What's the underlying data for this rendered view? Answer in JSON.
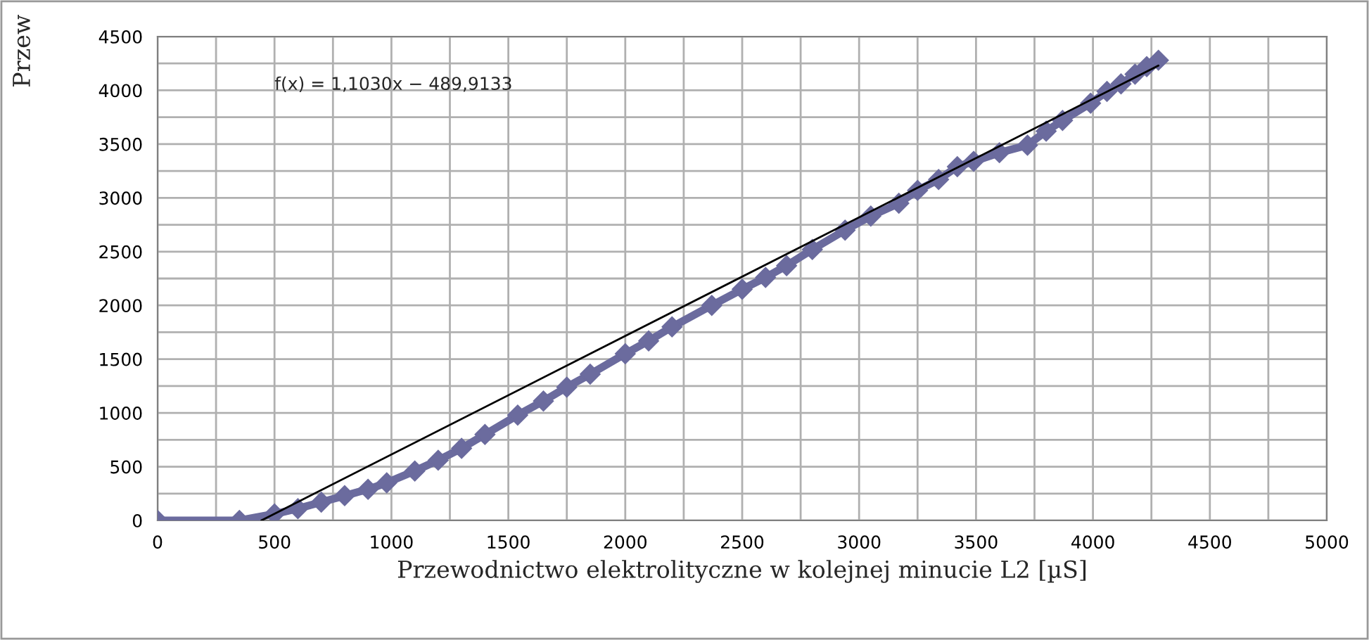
{
  "chart_data": {
    "type": "line",
    "xlabel": "Przewodnictwo elektrolityczne w kolejnej minucie L2 [µS]",
    "ylabel": "Przew",
    "annotations": [
      "f(x) = 1,1030x − 489,9133"
    ],
    "series": [
      {
        "color": "#6b6b9e",
        "marker": "diamond",
        "x": [
          0,
          350,
          500,
          600,
          700,
          800,
          900,
          980,
          1100,
          1200,
          1300,
          1400,
          1540,
          1650,
          1750,
          1850,
          2000,
          2100,
          2200,
          2370,
          2500,
          2600,
          2690,
          2800,
          2940,
          3050,
          3170,
          3250,
          3340,
          3420,
          3490,
          3600,
          3720,
          3800,
          3870,
          3990,
          4060,
          4120,
          4180,
          4230,
          4280
        ],
        "values": [
          0,
          0,
          60,
          110,
          170,
          230,
          290,
          350,
          460,
          560,
          670,
          800,
          980,
          1110,
          1240,
          1360,
          1550,
          1670,
          1800,
          2000,
          2150,
          2260,
          2370,
          2520,
          2700,
          2830,
          2950,
          3070,
          3170,
          3290,
          3340,
          3420,
          3490,
          3620,
          3720,
          3880,
          3990,
          4060,
          4150,
          4220,
          4280
        ]
      },
      {
        "color": "#000000",
        "marker": "none",
        "x": [
          444,
          4280
        ],
        "values": [
          0,
          4230
        ]
      }
    ],
    "xlim": [
      0,
      5000
    ],
    "ylim": [
      0,
      4500
    ],
    "xticks": [
      0,
      {
        "value": 250,
        "label": null
      },
      500,
      {
        "value": 750,
        "label": null
      },
      1000,
      {
        "value": 1250,
        "label": null
      },
      1500,
      {
        "value": 1750,
        "label": null
      },
      2000,
      {
        "value": 2250,
        "label": null
      },
      2500,
      {
        "value": 2750,
        "label": null
      },
      3000,
      {
        "value": 3250,
        "label": null
      },
      3500,
      {
        "value": 3750,
        "label": null
      },
      4000,
      {
        "value": 4250,
        "label": null
      },
      4500,
      {
        "value": 4750,
        "label": null
      },
      5000
    ],
    "yticks": [
      0,
      {
        "value": 250,
        "label": null
      },
      500,
      {
        "value": 750,
        "label": null
      },
      1000,
      {
        "value": 1250,
        "label": null
      },
      1500,
      {
        "value": 1750,
        "label": null
      },
      2000,
      {
        "value": 2250,
        "label": null
      },
      2500,
      {
        "value": 2750,
        "label": null
      },
      3000,
      {
        "value": 3250,
        "label": null
      },
      3500,
      {
        "value": 3750,
        "label": null
      },
      4000,
      {
        "value": 4250,
        "label": null
      },
      4500
    ],
    "grid": true
  }
}
